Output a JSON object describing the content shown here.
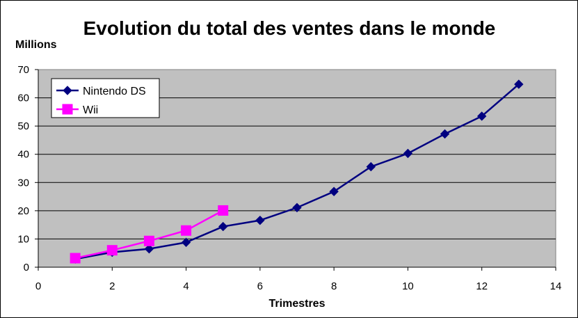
{
  "chart_data": {
    "type": "line",
    "title": "Evolution du total des ventes dans le monde",
    "ylabel": "Millions",
    "xlabel": "Trimestres",
    "xlim": [
      0,
      14
    ],
    "ylim": [
      0,
      70
    ],
    "xticks": [
      "0",
      "2",
      "4",
      "6",
      "8",
      "10",
      "12",
      "14"
    ],
    "yticks": [
      "0",
      "10",
      "20",
      "30",
      "40",
      "50",
      "60",
      "70"
    ],
    "grid": "horizontal",
    "legend_position": "top-left",
    "series": [
      {
        "name": "Nintendo DS",
        "color": "#000080",
        "marker": "diamond",
        "x": [
          1,
          2,
          3,
          4,
          5,
          6,
          7,
          8,
          9,
          10,
          11,
          12,
          13
        ],
        "values": [
          2.9,
          5.3,
          6.5,
          8.8,
          14.4,
          16.6,
          21.1,
          26.8,
          35.6,
          40.3,
          47.2,
          53.5,
          64.8
        ]
      },
      {
        "name": "Wii",
        "color": "#FF00FF",
        "marker": "square",
        "x": [
          1,
          2,
          3,
          4,
          5
        ],
        "values": [
          3.2,
          6.0,
          9.3,
          13.0,
          20.1
        ]
      }
    ]
  }
}
